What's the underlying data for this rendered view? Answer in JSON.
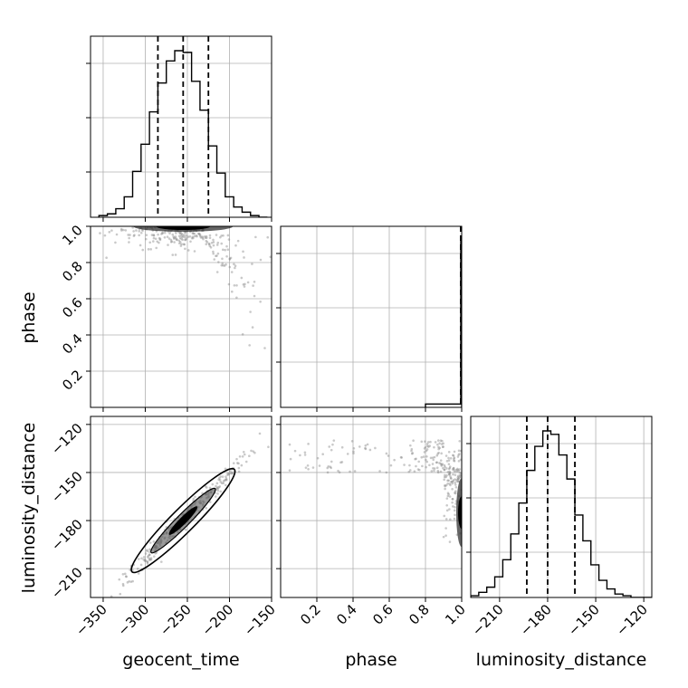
{
  "chart_data": {
    "type": "corner",
    "parameters": [
      "geocent_time",
      "phase",
      "luminosity_distance"
    ],
    "ranges": {
      "geocent_time": [
        -365,
        -150
      ],
      "phase": [
        0.0,
        1.0
      ],
      "luminosity_distance": [
        -228,
        -115
      ]
    },
    "ticks": {
      "geocent_time": [
        -350,
        -300,
        -250,
        -200,
        -150
      ],
      "phase": [
        0.2,
        0.4,
        0.6,
        0.8,
        1.0
      ],
      "luminosity_distance": [
        -210,
        -180,
        -150,
        -120
      ]
    },
    "tick_labels": {
      "geocent_time": [
        "−350",
        "−300",
        "−250",
        "−200",
        "−150"
      ],
      "phase": [
        "0.2",
        "0.4",
        "0.6",
        "0.8",
        "1.0"
      ],
      "luminosity_distance": [
        "−210",
        "−180",
        "−150",
        "−120"
      ]
    },
    "labels": {
      "geocent_time": "geocent_time",
      "phase": "phase",
      "luminosity_distance": "luminosity_distance"
    },
    "quantiles": {
      "geocent_time": [
        -285,
        -255,
        -225
      ],
      "phase": [
        1.0,
        1.0,
        1.0
      ],
      "luminosity_distance": [
        -193,
        -180,
        -163
      ]
    },
    "histograms": {
      "geocent_time": {
        "edges": [
          -355,
          -345,
          -335,
          -325,
          -315,
          -305,
          -295,
          -285,
          -275,
          -265,
          -255,
          -245,
          -235,
          -225,
          -215,
          -205,
          -195,
          -185,
          -175,
          -165,
          -155
        ],
        "counts": [
          1,
          2,
          5,
          12,
          27,
          43,
          62,
          79,
          92,
          98,
          97,
          80,
          63,
          42,
          26,
          12,
          6,
          3,
          1,
          0
        ]
      },
      "phase": {
        "edges": [
          0.8,
          0.95,
          0.995,
          1.0
        ],
        "counts": [
          0.02,
          0.02,
          1.0
        ]
      },
      "luminosity_distance": {
        "edges": [
          -228,
          -223,
          -218,
          -213,
          -208,
          -203,
          -198,
          -193,
          -188,
          -183,
          -178,
          -173,
          -168,
          -163,
          -158,
          -153,
          -148,
          -143,
          -138,
          -133,
          -128,
          -123,
          -115
        ],
        "counts": [
          1,
          3,
          6,
          12,
          22,
          37,
          55,
          74,
          88,
          97,
          95,
          83,
          69,
          48,
          33,
          19,
          10,
          5,
          2,
          1,
          0,
          0
        ]
      }
    },
    "yticks_hist": [
      0.25,
      0.55,
      0.85
    ],
    "grid": true,
    "colors": {
      "line": "#000000",
      "points": "#888888",
      "grid": "#b0b0b0",
      "quantile": "#000000"
    }
  }
}
